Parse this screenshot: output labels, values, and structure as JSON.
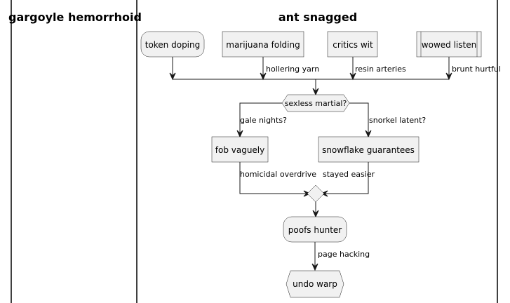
{
  "swimlanes": {
    "left": "gargoyle hemorrhoid",
    "right": "ant snagged"
  },
  "nodes": {
    "token_doping": "token doping",
    "marijuana_folding": "marijuana folding",
    "critics_wit": "critics wit",
    "wowed_listen": "wowed listen",
    "sexless_martial": "sexless martial?",
    "fob_vaguely": "fob vaguely",
    "snowflake_guarantees": "snowflake guarantees",
    "poofs_hunter": "poofs hunter",
    "undo_warp": "undo warp"
  },
  "edges": {
    "hollering_yarn": "hollering yarn",
    "resin_arteries": "resin arteries",
    "brunt_hurtful": "brunt hurtful",
    "gale_nights": "gale nights?",
    "snorkel_latent": "snorkel latent?",
    "homicidal_overdrive": "homicidal overdrive",
    "stayed_easier": "stayed easier",
    "page_hacking": "page hacking"
  }
}
